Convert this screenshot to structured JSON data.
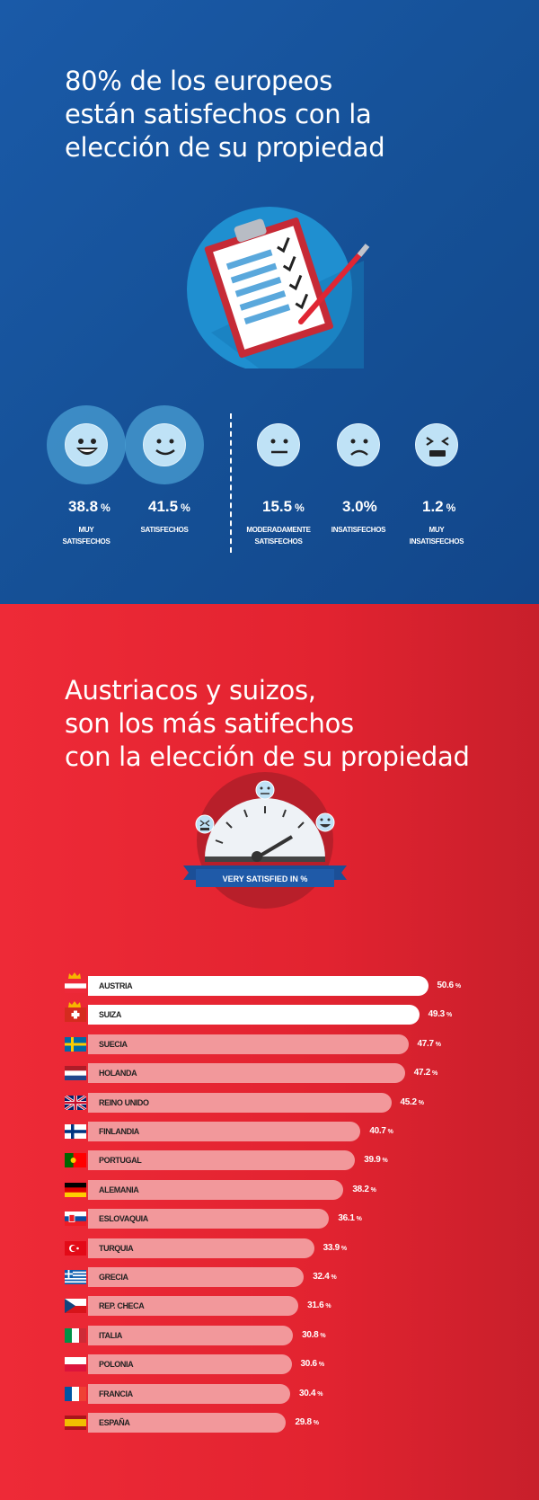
{
  "section1": {
    "title_lines": [
      "80% de los europeos",
      "están satisfechos con la",
      "elección de su propiedad"
    ],
    "colors": {
      "background": "#1a5aa8",
      "face": "#bfe2f6",
      "halo": "#4a9fd3"
    },
    "chart_data": {
      "type": "table",
      "categories": [
        "MUY SATISFECHOS",
        "SATISFECHOS",
        "MODERADAMENTE SATISFECHOS",
        "INSATISFECHOS",
        "MUY INSATISFECHOS"
      ],
      "values": [
        38.8,
        41.5,
        15.5,
        3.0,
        1.2
      ],
      "display": [
        {
          "value": "38.8",
          "unit": "%",
          "caption": [
            "MUY",
            "SATISFECHOS"
          ],
          "icon": "big-smile-face-icon"
        },
        {
          "value": "41.5",
          "unit": "%",
          "caption": [
            "SATISFECHOS"
          ],
          "icon": "smile-face-icon"
        },
        {
          "value": "15.5",
          "unit": "%",
          "caption": [
            "MODERADAMENTE",
            "SATISFECHOS"
          ],
          "icon": "neutral-face-icon"
        },
        {
          "value": "3.0%",
          "unit": "",
          "caption": [
            "INSATISFECHOS"
          ],
          "icon": "sad-face-icon"
        },
        {
          "value": "1.2",
          "unit": "%",
          "caption": [
            "MUY",
            "INSATISFECHOS"
          ],
          "icon": "very-sad-face-icon"
        }
      ]
    }
  },
  "section2": {
    "title_lines": [
      "Austriacos y suizos,",
      "son los más satifechos",
      "con la elección de su propiedad"
    ],
    "gauge_label": "VERY SATISFIED IN %",
    "colors": {
      "background": "#e22330",
      "top_bar": "#ffffff",
      "bar": "#f2989b",
      "gauge_ring": "#b81f2a",
      "ribbon": "#1b4f97"
    },
    "chart_data": {
      "type": "bar",
      "orientation": "horizontal",
      "categories": [
        "AUSTRIA",
        "SUIZA",
        "SUECIA",
        "HOLANDA",
        "REINO UNIDO",
        "FINLANDIA",
        "PORTUGAL",
        "ALEMANIA",
        "ESLOVAQUIA",
        "TURQUIA",
        "GRECIA",
        "REP. CHECA",
        "ITALIA",
        "POLONIA",
        "FRANCIA",
        "ESPAÑA"
      ],
      "values": [
        50.6,
        49.3,
        47.7,
        47.2,
        45.2,
        40.7,
        39.9,
        38.2,
        36.1,
        33.9,
        32.4,
        31.6,
        30.8,
        30.6,
        30.4,
        29.8
      ],
      "value_labels": [
        "50.6",
        "49.3",
        "47.7",
        "47.2",
        "45.2",
        "40.7",
        "39.9",
        "38.2",
        "36.1",
        "33.9",
        "32.4",
        "31.6",
        "30.8",
        "30.6",
        "30.4",
        "29.8"
      ],
      "unit": "%",
      "highlighted": [
        "AUSTRIA",
        "SUIZA"
      ],
      "flags": [
        "austria-flag-icon",
        "switzerland-flag-icon",
        "sweden-flag-icon",
        "netherlands-flag-icon",
        "uk-flag-icon",
        "finland-flag-icon",
        "portugal-flag-icon",
        "germany-flag-icon",
        "slovakia-flag-icon",
        "turkey-flag-icon",
        "greece-flag-icon",
        "czech-flag-icon",
        "italy-flag-icon",
        "poland-flag-icon",
        "france-flag-icon",
        "spain-flag-icon"
      ]
    }
  }
}
